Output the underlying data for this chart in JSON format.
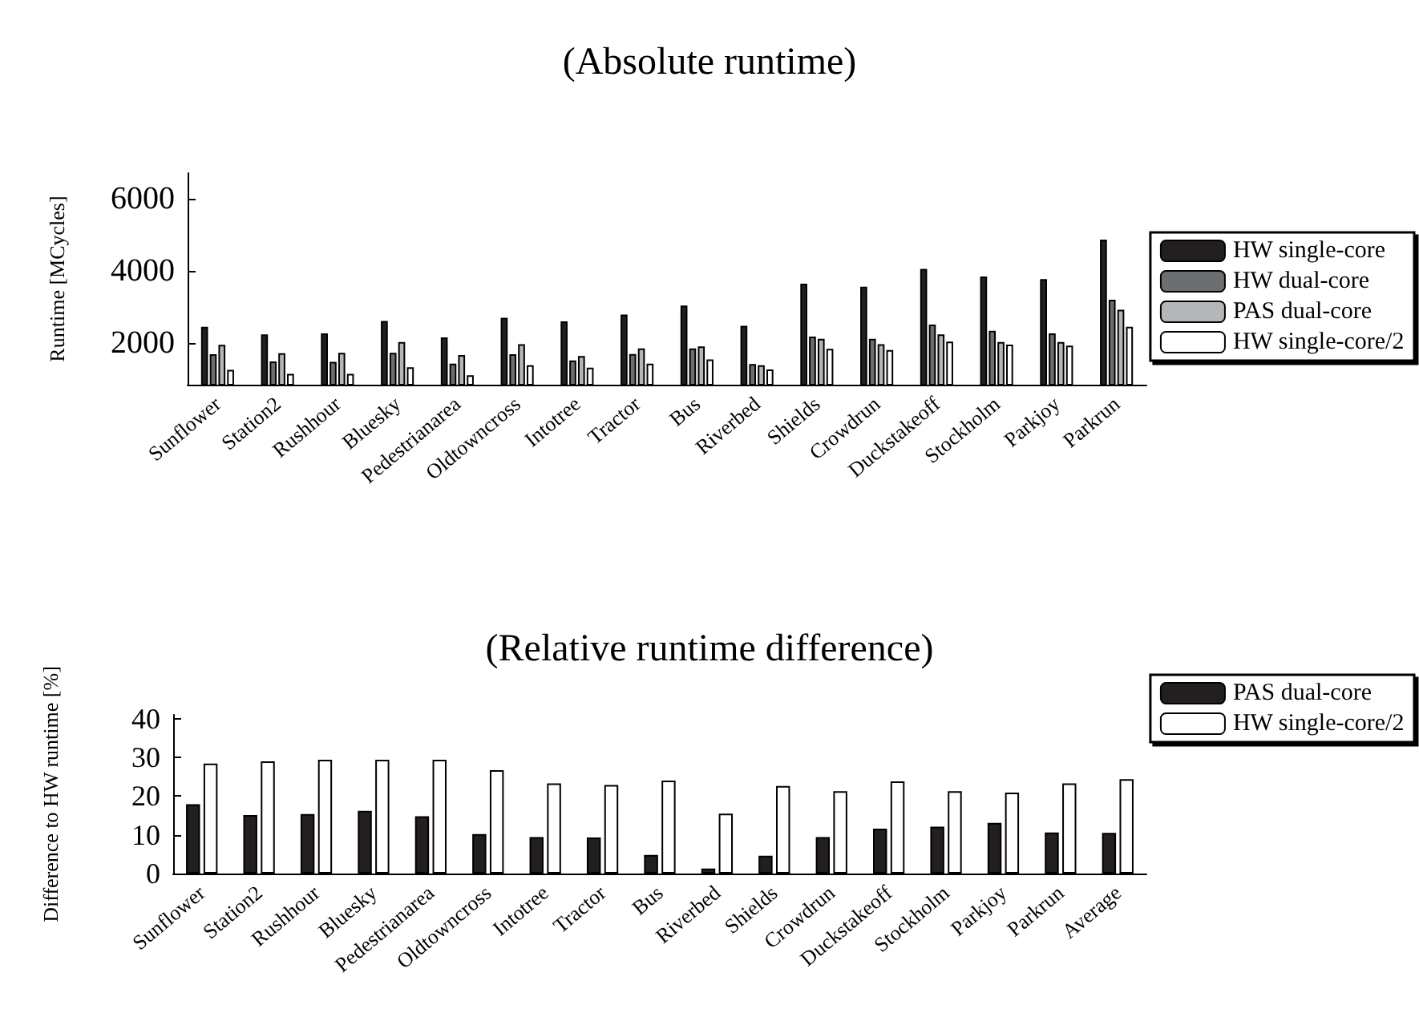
{
  "chart_data": [
    {
      "type": "bar",
      "title": "(Absolute runtime)",
      "ylabel": "Runtime [MCycles]",
      "categories": [
        "Sunflower",
        "Station2",
        "Rushhour",
        "Bluesky",
        "Pedestrianarea",
        "Oldtowncross",
        "Intotree",
        "Tractor",
        "Bus",
        "Riverbed",
        "Shields",
        "Crowdrun",
        "Duckstakeoff",
        "Stockholm",
        "Parkjoy",
        "Parkrun"
      ],
      "series": [
        {
          "name": "HW single-core",
          "color": "#231f20",
          "values": [
            2450,
            2240,
            2270,
            2610,
            2160,
            2700,
            2600,
            2790,
            3040,
            2480,
            3640,
            3560,
            4050,
            3840,
            3770,
            4860
          ]
        },
        {
          "name": "HW dual-core",
          "color": "#6d6e70",
          "values": [
            1690,
            1490,
            1480,
            1730,
            1430,
            1690,
            1520,
            1700,
            1850,
            1420,
            2180,
            2120,
            2510,
            2340,
            2270,
            3200
          ]
        },
        {
          "name": "PAS dual-core",
          "color": "#b5b6b8",
          "values": [
            1950,
            1720,
            1730,
            2030,
            1670,
            1970,
            1640,
            1850,
            1910,
            1390,
            2120,
            1970,
            2240,
            2030,
            2030,
            2920
          ]
        },
        {
          "name": "HW single-core/2",
          "color": "#ffffff",
          "values": [
            1260,
            1150,
            1150,
            1330,
            1110,
            1390,
            1320,
            1430,
            1550,
            1270,
            1840,
            1810,
            2040,
            1960,
            1930,
            2450
          ]
        }
      ],
      "ylim": [
        850,
        6700
      ],
      "yticks": [
        2000,
        4000,
        6000
      ],
      "grid": false,
      "legend": "right"
    },
    {
      "type": "bar",
      "title": "(Relative runtime difference)",
      "ylabel": "Difference to HW runtime [%]",
      "categories": [
        "Sunflower",
        "Station2",
        "Rushhour",
        "Bluesky",
        "Pedestrianarea",
        "Oldtowncross",
        "Intotree",
        "Tractor",
        "Bus",
        "Riverbed",
        "Shields",
        "Crowdrun",
        "Duckstakeoff",
        "Stockholm",
        "Parkjoy",
        "Parkrun",
        "Average"
      ],
      "series": [
        {
          "name": "PAS dual-core",
          "color": "#231f20",
          "values": [
            17.9,
            15.1,
            15.4,
            16.2,
            14.8,
            10.2,
            9.4,
            9.3,
            4.8,
            1.3,
            4.6,
            9.4,
            11.6,
            12.1,
            13.1,
            10.6,
            10.5
          ]
        },
        {
          "name": "HW single-core/2",
          "color": "#ffffff",
          "values": [
            28.4,
            29.0,
            29.4,
            29.4,
            29.4,
            26.7,
            23.3,
            22.9,
            24.0,
            15.5,
            22.6,
            21.3,
            23.8,
            21.3,
            20.9,
            23.3,
            24.4
          ]
        }
      ],
      "ylim": [
        0,
        41
      ],
      "yticks": [
        0,
        10,
        20,
        30,
        40
      ],
      "grid": false,
      "legend": "top right"
    }
  ]
}
